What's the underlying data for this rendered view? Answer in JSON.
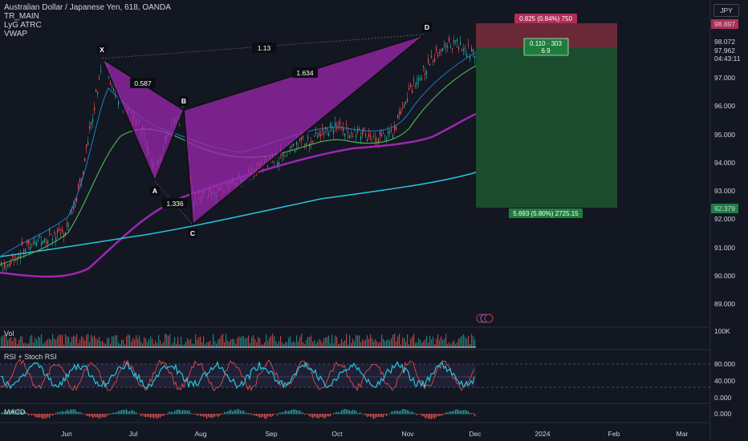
{
  "legend": {
    "title": "Australian Dollar / Japanese Yen, 618, OANDA",
    "indicators": [
      "TR_MAIN",
      "LyG ATRC",
      "VWAP"
    ]
  },
  "currency_button": "JPY",
  "price_axis": {
    "ticks": [
      "97.000",
      "96.000",
      "95.000",
      "94.000",
      "93.000",
      "92.000",
      "91.000",
      "90.000",
      "89.000"
    ],
    "badges": {
      "stop": "98.897",
      "entry": "98.072",
      "current": "97.962",
      "countdown": "04:43:11",
      "target": "92.379"
    }
  },
  "x_axis": {
    "labels": [
      "Jun",
      "Jul",
      "Aug",
      "Sep",
      "Oct",
      "Nov",
      "Dec",
      "2024",
      "Feb",
      "Mar"
    ]
  },
  "pattern": {
    "points": [
      "X",
      "A",
      "B",
      "C",
      "D"
    ],
    "ratios": {
      "xa_ab": "0.587",
      "xd": "1.13",
      "bc": "1.336",
      "bd": "1.634"
    }
  },
  "position": {
    "stop_label": "0.825 (0.84%) 750",
    "risk_reward_label": "0.110 · 303",
    "risk_reward_sub": "6.9",
    "target_label": "5.693 (5.80%) 2725.15"
  },
  "panes": {
    "volume": {
      "label": "Vol",
      "axis": "100K"
    },
    "rsi": {
      "label": "RSI + Stoch RSI",
      "axis": [
        "80.000",
        "40.000",
        "0.000"
      ]
    },
    "macd": {
      "label": "MACD",
      "axis": "0.000"
    }
  },
  "colors": {
    "background": "#131722",
    "up": "#26a69a",
    "down": "#ef5350",
    "pattern": "#9c27b0",
    "stop_zone": "#7b2d3b",
    "target_zone": "#1e5a32",
    "vwap": "#26c6da",
    "ma_purple": "#9c27b0",
    "ma_green": "#4caf50"
  }
}
